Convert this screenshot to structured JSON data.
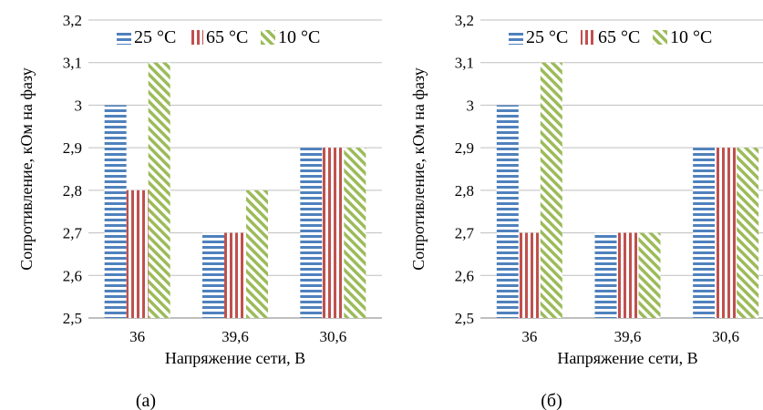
{
  "chart_data": [
    {
      "type": "bar",
      "panel_label": "(а)",
      "categories": [
        "36",
        "39,6",
        "30,6"
      ],
      "series": [
        {
          "name": "25 °C",
          "values": [
            3.0,
            2.7,
            2.9
          ],
          "color": "#4F81BD",
          "pattern": "horizontal-stripes"
        },
        {
          "name": "65 °C",
          "values": [
            2.8,
            2.7,
            2.9
          ],
          "color": "#C0504D",
          "pattern": "vertical-stripes"
        },
        {
          "name": "10 °C",
          "values": [
            3.1,
            2.8,
            2.9
          ],
          "color": "#9BBB59",
          "pattern": "diagonal-stripes"
        }
      ],
      "xlabel": "Напряжение сети, В",
      "ylabel": "Сопротивление, кОм на фазу",
      "ylim": [
        2.5,
        3.2
      ],
      "yticks": [
        "2,5",
        "2,6",
        "2,7",
        "2,8",
        "2,9",
        "3",
        "3,1",
        "3,2"
      ],
      "grid": true,
      "legend_position": "top"
    },
    {
      "type": "bar",
      "panel_label": "(б)",
      "categories": [
        "36",
        "39,6",
        "30,6"
      ],
      "series": [
        {
          "name": "25 °C",
          "values": [
            3.0,
            2.7,
            2.9
          ],
          "color": "#4F81BD",
          "pattern": "horizontal-stripes"
        },
        {
          "name": "65 °C",
          "values": [
            2.7,
            2.7,
            2.9
          ],
          "color": "#C0504D",
          "pattern": "vertical-stripes"
        },
        {
          "name": "10 °C",
          "values": [
            3.1,
            2.7,
            2.9
          ],
          "color": "#9BBB59",
          "pattern": "diagonal-stripes"
        }
      ],
      "xlabel": "Напряжение сети, В",
      "ylabel": "Сопротивление, кОм на фазу",
      "ylim": [
        2.5,
        3.2
      ],
      "yticks": [
        "2,5",
        "2,6",
        "2,7",
        "2,8",
        "2,9",
        "3",
        "3,1",
        "3,2"
      ],
      "grid": true,
      "legend_position": "top"
    }
  ]
}
